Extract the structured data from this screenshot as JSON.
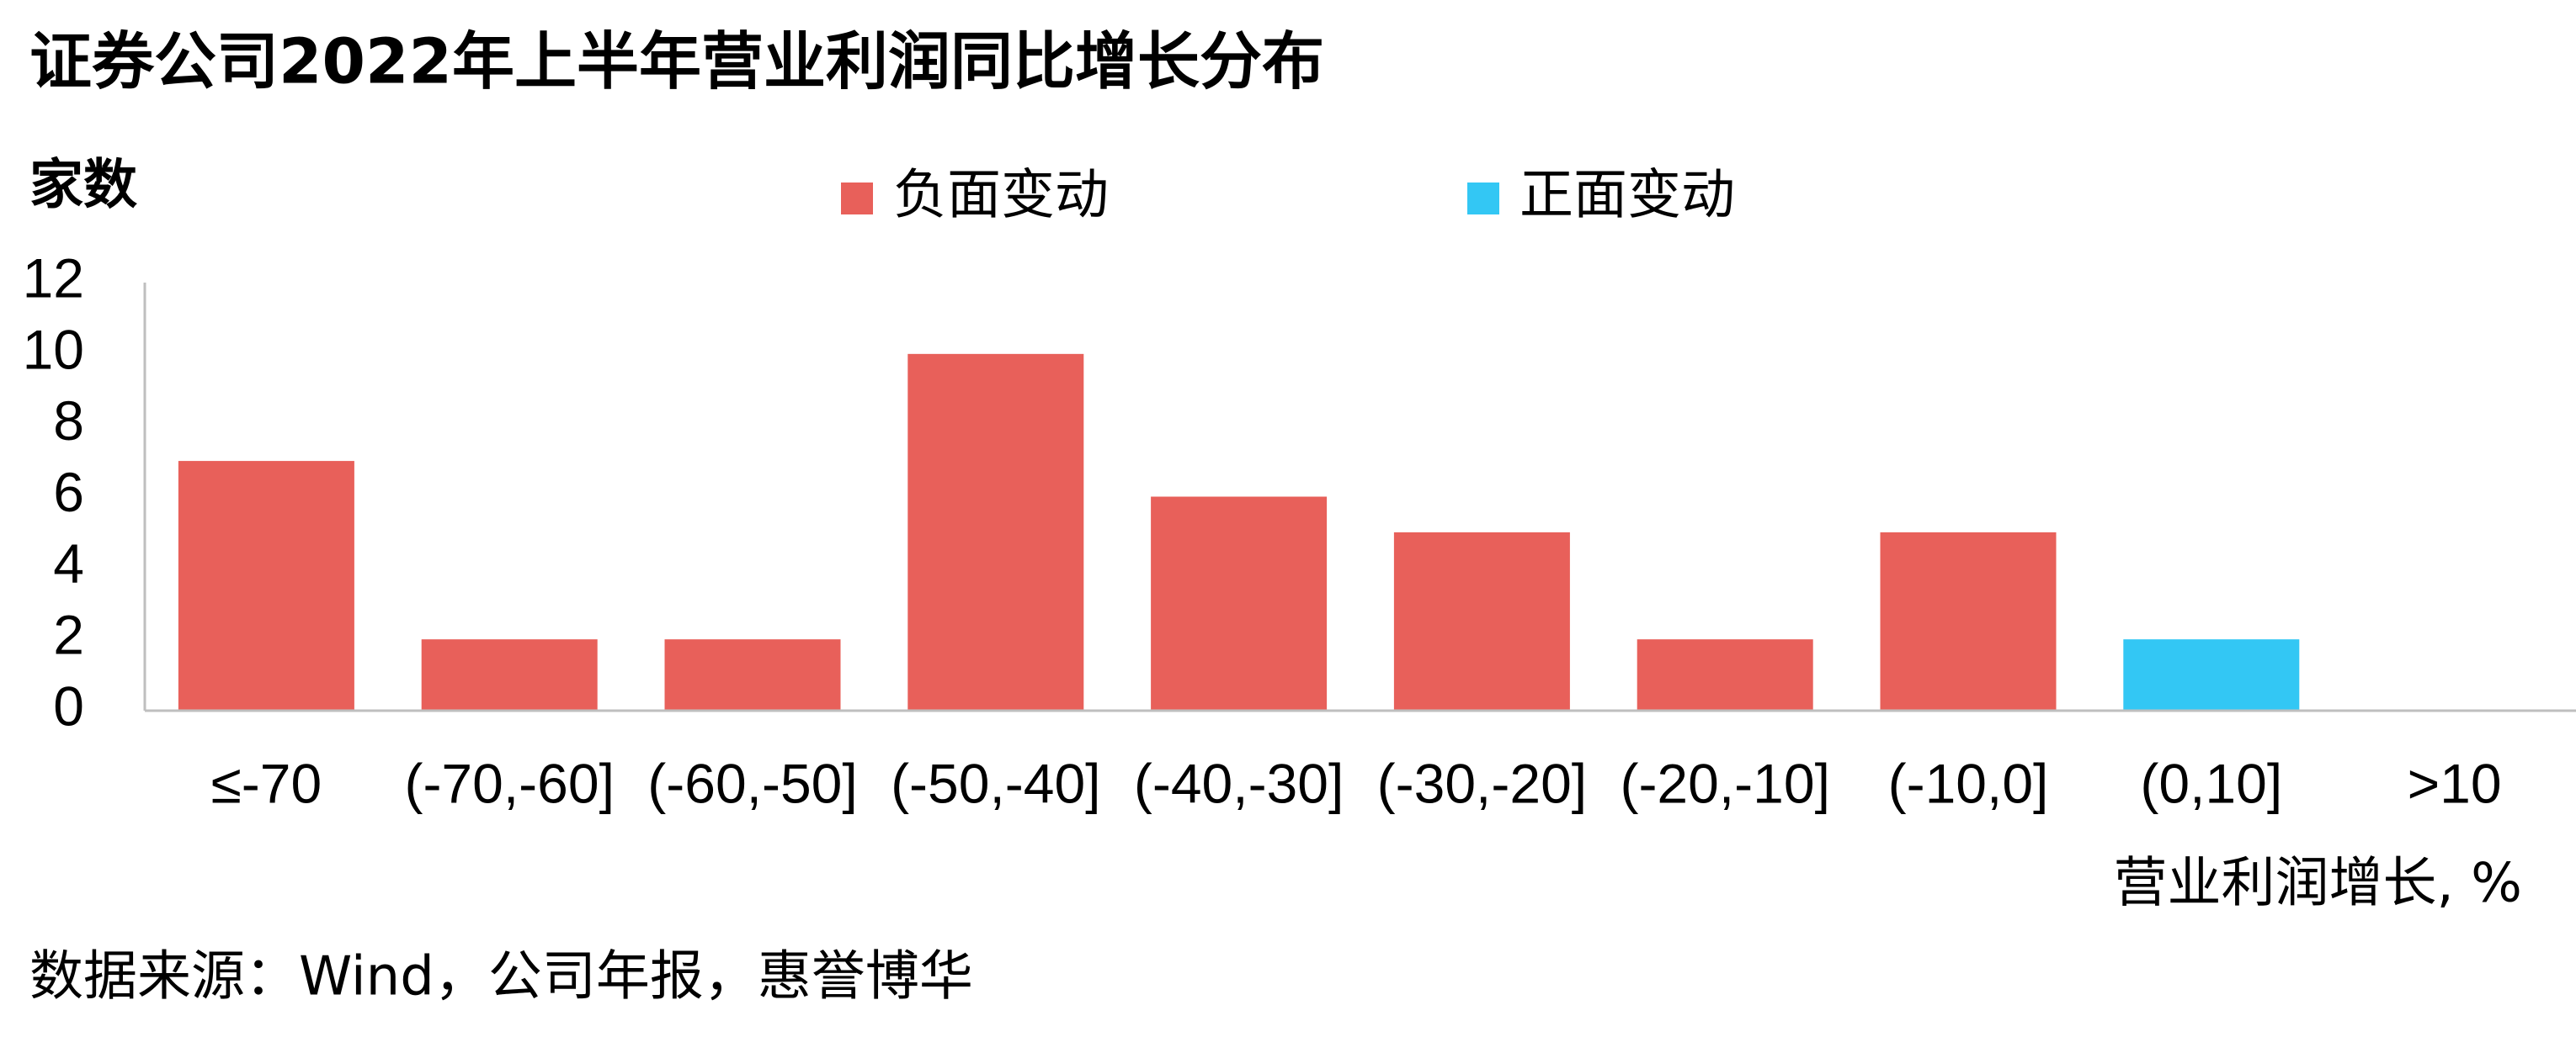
{
  "chart_data": {
    "type": "bar",
    "title": "证券公司2022年上半年营业利润同比增长分布",
    "y_label": "家数",
    "x_label": "营业利润增长, %",
    "source": "数据来源：Wind，公司年报，惠誉博华",
    "categories": [
      "≤-70",
      "(-70,-60]",
      "(-60,-50]",
      "(-50,-40]",
      "(-40,-30]",
      "(-30,-20]",
      "(-20,-10]",
      "(-10,0]",
      "(0,10]",
      ">10"
    ],
    "series": [
      {
        "name": "负面变动",
        "color": "#e8605a",
        "values": [
          7,
          2,
          2,
          10,
          6,
          5,
          2,
          5,
          null,
          null
        ]
      },
      {
        "name": "正面变动",
        "color": "#33c7f4",
        "values": [
          null,
          null,
          null,
          null,
          null,
          null,
          null,
          null,
          2,
          0
        ]
      }
    ],
    "ylim": [
      0,
      12
    ],
    "yticks": [
      0,
      2,
      4,
      6,
      8,
      10,
      12
    ],
    "grid": false
  }
}
